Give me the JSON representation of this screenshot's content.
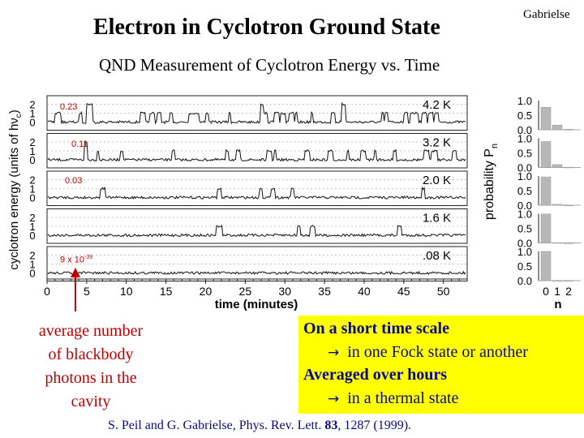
{
  "slide": {
    "title": "Electron in Cyclotron Ground State",
    "author": "Gabrielse",
    "subtitle": "QND Measurement of Cyclotron Energy vs. Time"
  },
  "figure": {
    "y_axis_label": "cyclotron energy (units of hν",
    "y_axis_label_sub": "c",
    "y_axis_label_end": ")",
    "x_axis_label": "time (minutes)",
    "x_ticks": [
      "0",
      "5",
      "10",
      "15",
      "20",
      "25",
      "30",
      "35",
      "40",
      "45",
      "50"
    ],
    "trace_ticks": [
      "2",
      "1",
      "0"
    ],
    "temperatures": [
      "4.2 K",
      "3.2 K",
      "2.0 K",
      "1.6 K",
      ".08 K"
    ],
    "mean_photon_labels": [
      {
        "text": "0.23",
        "sup": ""
      },
      {
        "text": "0.11",
        "sup": ""
      },
      {
        "text": "0.03",
        "sup": ""
      },
      {
        "text": "",
        "sup": ""
      },
      {
        "text": "9 x 10",
        "sup": "-39"
      }
    ],
    "prob_axis_label": "probability P",
    "prob_axis_label_sub": "n",
    "prob_ticks": [
      "1.0",
      "0.5",
      "0.0"
    ],
    "n_axis_label": "n",
    "n_ticks": [
      "0",
      "1",
      "2"
    ],
    "histograms": [
      [
        0.77,
        0.16,
        0.02
      ],
      [
        0.89,
        0.1,
        0.01
      ],
      [
        0.97,
        0.03,
        0.0
      ],
      [
        0.99,
        0.01,
        0.0
      ],
      [
        1.0,
        0.0,
        0.0
      ]
    ],
    "colors": {
      "annotation": "#c00000",
      "trace": "#111111"
    }
  },
  "note": {
    "lines": [
      "average number",
      "of blackbody",
      "photons in the",
      "cavity"
    ]
  },
  "summary": {
    "line1": "On a short time scale",
    "line2": "in one Fock state or another",
    "line3": "Averaged over hours",
    "line4": "in a thermal state",
    "arrow": "→",
    "background": "#ffff00"
  },
  "reference": {
    "authors": "S. Peil and G. Gabrielse, Phys. Rev. Lett.",
    "volume": "83",
    "pages": ", 1287 (1999)."
  }
}
